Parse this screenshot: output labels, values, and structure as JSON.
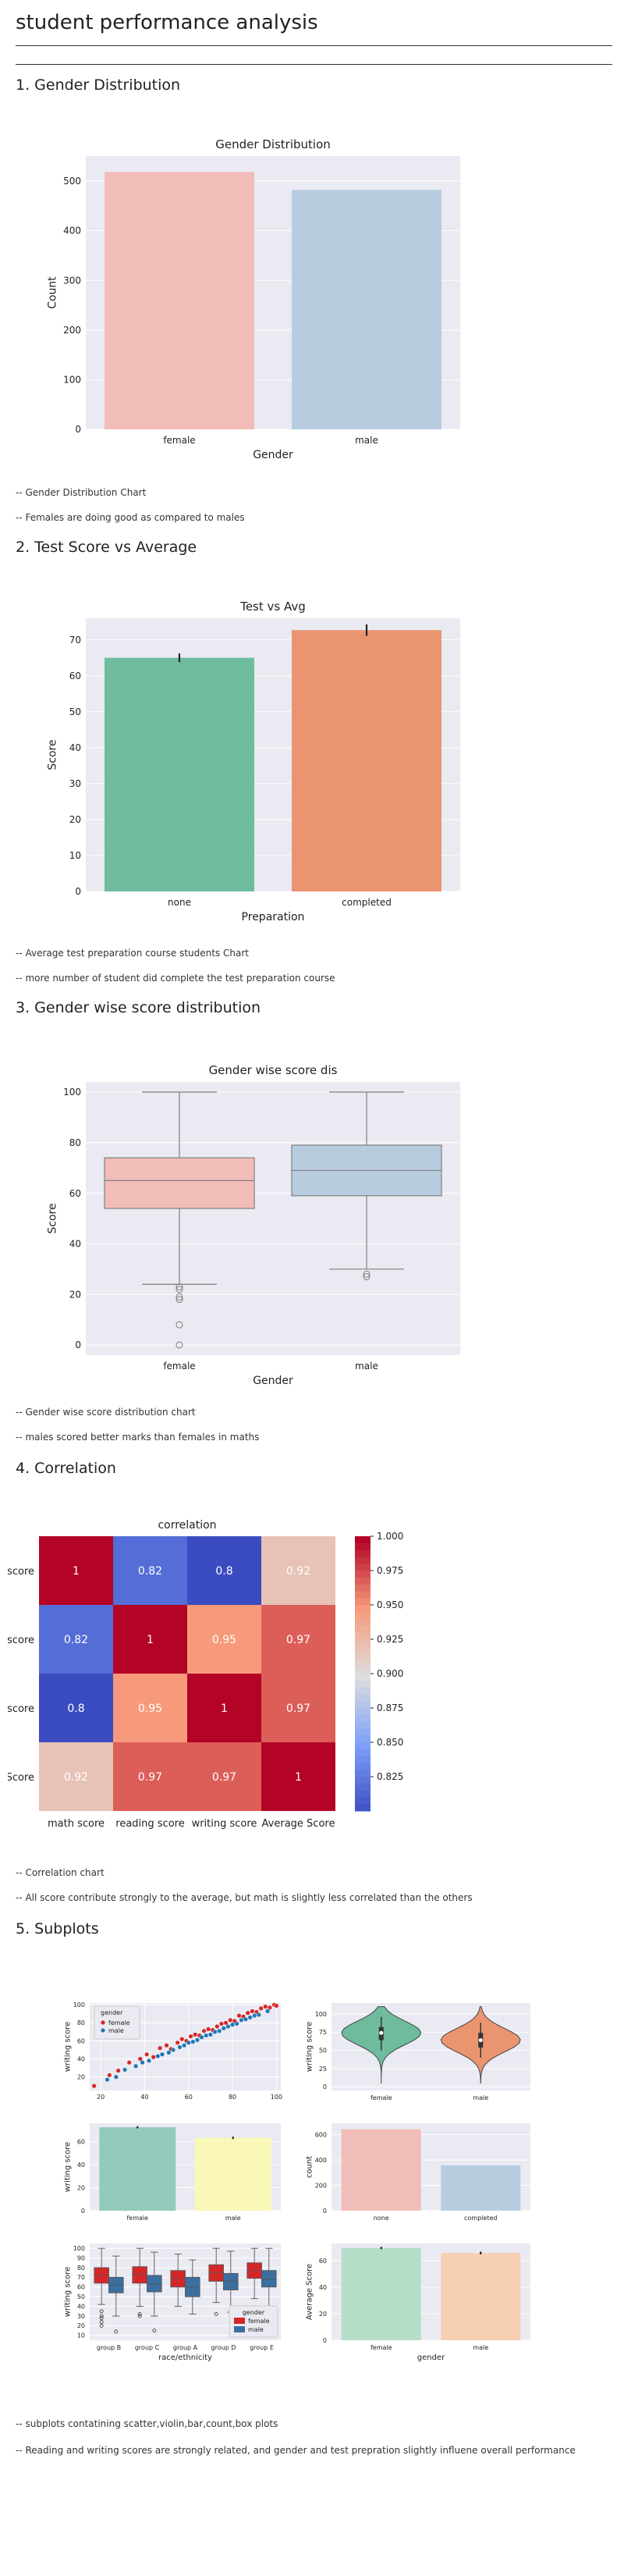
{
  "page": {
    "title": "student performance analysis",
    "sections": [
      {
        "heading": "1. Gender Distribution",
        "notes": [
          "-- Gender Distribution Chart",
          "-- Females are doing good as compared to males"
        ]
      },
      {
        "heading": "2. Test Score vs Average",
        "notes": [
          "-- Average test preparation course students Chart",
          "-- more number of student did complete the test preparation course"
        ]
      },
      {
        "heading": "3. Gender wise score distribution",
        "notes": [
          "-- Gender wise score distribution chart",
          "-- males scored better marks than females in maths"
        ]
      },
      {
        "heading": "4. Correlation",
        "notes": [
          "-- Correlation chart",
          "-- All score contribute strongly to the average, but math is slightly less correlated than the others"
        ]
      },
      {
        "heading": "5. Subplots",
        "notes": [
          "-- subplots contatining scatter,violin,bar,count,box plots",
          "-- Reading and writing scores are strongly related, and gender and test prepration slightly influene overall performance"
        ]
      }
    ]
  },
  "chart_data": [
    {
      "type": "bar",
      "title": "Gender Distribution",
      "xlabel": "Gender",
      "ylabel": "Count",
      "categories": [
        "female",
        "male"
      ],
      "values": [
        518,
        482
      ],
      "ylim": [
        0,
        550
      ],
      "yticks": [
        0,
        100,
        200,
        300,
        400,
        500
      ],
      "colors": [
        "#f2bcb8",
        "#b8cce0"
      ],
      "grid": true
    },
    {
      "type": "bar",
      "title": "Test vs Avg",
      "xlabel": "Preparation",
      "ylabel": "Score",
      "categories": [
        "none",
        "completed"
      ],
      "values": [
        65.0,
        72.7
      ],
      "error": [
        1.2,
        1.6
      ],
      "ylim": [
        0,
        76
      ],
      "yticks": [
        0,
        10,
        20,
        30,
        40,
        50,
        60,
        70
      ],
      "colors": [
        "#6fbb9e",
        "#ea9470"
      ],
      "grid": true
    },
    {
      "type": "box",
      "title": "Gender wise score dis",
      "xlabel": "Gender",
      "ylabel": "Score",
      "categories": [
        "female",
        "male"
      ],
      "boxes": [
        {
          "whislo": 24,
          "q1": 54,
          "med": 65,
          "q3": 74,
          "whishi": 100,
          "fliers": [
            23,
            22,
            19,
            18,
            8,
            0
          ]
        },
        {
          "whislo": 30,
          "q1": 59,
          "med": 69,
          "q3": 79,
          "whishi": 100,
          "fliers": [
            28,
            27
          ]
        }
      ],
      "ylim": [
        -4,
        104
      ],
      "yticks": [
        0,
        20,
        40,
        60,
        80,
        100
      ],
      "colors": [
        "#f2bcb8",
        "#b8cce0"
      ],
      "grid": true
    },
    {
      "type": "heatmap",
      "title": "correlation",
      "row_labels": [
        "math score",
        "reading score",
        "writing score",
        "Average Score"
      ],
      "col_labels": [
        "math score",
        "reading score",
        "writing score",
        "Average Score"
      ],
      "visible_row_labels": [
        "nath score",
        "iding score",
        "iting score",
        "age Score"
      ],
      "values": [
        [
          1,
          0.82,
          0.8,
          0.92
        ],
        [
          0.82,
          1,
          0.95,
          0.97
        ],
        [
          0.8,
          0.95,
          1,
          0.97
        ],
        [
          0.92,
          0.97,
          0.97,
          1
        ]
      ],
      "colormap": "coolwarm",
      "colorbar_ticks": [
        0.825,
        0.85,
        0.875,
        0.9,
        0.925,
        0.95,
        0.975,
        1.0
      ],
      "colorbar_labels": [
        "0.825",
        "0.850",
        "0.875",
        "0.900",
        "0.925",
        "0.950",
        "0.975",
        "1.000"
      ],
      "range": [
        0.8,
        1.0
      ]
    },
    {
      "type": "scatter",
      "xlabel": "",
      "ylabel": "writing score",
      "xlim": [
        15,
        102
      ],
      "ylim": [
        5,
        102
      ],
      "xticks": [
        20,
        40,
        60,
        80,
        100
      ],
      "yticks": [
        20,
        40,
        60,
        80,
        100
      ],
      "legend": {
        "title": "gender",
        "placement": "upper-left"
      },
      "series": [
        {
          "name": "female",
          "color": "#d62728",
          "points": [
            [
              17,
              10
            ],
            [
              24,
              22
            ],
            [
              28,
              27
            ],
            [
              33,
              36
            ],
            [
              38,
              40
            ],
            [
              41,
              45
            ],
            [
              44,
              42
            ],
            [
              47,
              52
            ],
            [
              50,
              55
            ],
            [
              52,
              51
            ],
            [
              55,
              58
            ],
            [
              57,
              62
            ],
            [
              59,
              60
            ],
            [
              61,
              65
            ],
            [
              63,
              67
            ],
            [
              65,
              66
            ],
            [
              67,
              71
            ],
            [
              69,
              73
            ],
            [
              71,
              72
            ],
            [
              73,
              76
            ],
            [
              75,
              79
            ],
            [
              77,
              80
            ],
            [
              79,
              83
            ],
            [
              81,
              82
            ],
            [
              83,
              88
            ],
            [
              85,
              87
            ],
            [
              87,
              91
            ],
            [
              89,
              93
            ],
            [
              91,
              92
            ],
            [
              93,
              96
            ],
            [
              95,
              98
            ],
            [
              97,
              97
            ],
            [
              99,
              100
            ],
            [
              100,
              99
            ]
          ]
        },
        {
          "name": "male",
          "color": "#1f77b4",
          "points": [
            [
              23,
              17
            ],
            [
              27,
              20
            ],
            [
              31,
              28
            ],
            [
              36,
              32
            ],
            [
              39,
              36
            ],
            [
              42,
              38
            ],
            [
              46,
              43
            ],
            [
              48,
              45
            ],
            [
              51,
              47
            ],
            [
              53,
              50
            ],
            [
              56,
              53
            ],
            [
              58,
              55
            ],
            [
              60,
              58
            ],
            [
              62,
              59
            ],
            [
              64,
              61
            ],
            [
              66,
              64
            ],
            [
              68,
              66
            ],
            [
              70,
              67
            ],
            [
              72,
              70
            ],
            [
              74,
              71
            ],
            [
              76,
              74
            ],
            [
              78,
              76
            ],
            [
              80,
              78
            ],
            [
              82,
              79
            ],
            [
              84,
              83
            ],
            [
              86,
              84
            ],
            [
              88,
              86
            ],
            [
              90,
              88
            ],
            [
              92,
              89
            ],
            [
              96,
              93
            ]
          ]
        }
      ]
    },
    {
      "type": "violin",
      "xlabel": "",
      "ylabel": "writing score",
      "categories": [
        "female",
        "male"
      ],
      "ylim": [
        -5,
        115
      ],
      "yticks": [
        0,
        25,
        50,
        75,
        100
      ],
      "colors": [
        "#6fbb9e",
        "#ea9470"
      ],
      "medians": [
        74,
        64
      ],
      "q1": [
        64,
        54
      ],
      "q3": [
        82,
        74
      ]
    },
    {
      "type": "bar",
      "xlabel": "",
      "ylabel": "writing score",
      "categories": [
        "female",
        "male"
      ],
      "values": [
        72.5,
        63.3
      ],
      "error": [
        0.9,
        1.0
      ],
      "ylim": [
        0,
        76
      ],
      "yticks": [
        0,
        20,
        40,
        60
      ],
      "colors": [
        "#92cbbd",
        "#f9f8b8"
      ]
    },
    {
      "type": "bar",
      "subtype": "count",
      "xlabel": "",
      "ylabel": "count",
      "categories": [
        "none",
        "completed"
      ],
      "values": [
        642,
        358
      ],
      "ylim": [
        0,
        690
      ],
      "yticks": [
        0,
        200,
        400,
        600
      ],
      "colors": [
        "#f2bcb8",
        "#b8cce0"
      ]
    },
    {
      "type": "box",
      "xlabel": "race/ethnicity",
      "ylabel": "writing score",
      "categories": [
        "group B",
        "group C",
        "group A",
        "group D",
        "group E"
      ],
      "legend": {
        "title": "gender",
        "placement": "lower-right"
      },
      "ylim": [
        5,
        105
      ],
      "yticks": [
        10,
        20,
        30,
        40,
        50,
        60,
        70,
        80,
        90,
        100
      ],
      "series": [
        {
          "name": "female",
          "color": "#d62728",
          "boxes": [
            {
              "whislo": 42,
              "q1": 64,
              "med": 72,
              "q3": 80,
              "whishi": 100,
              "fliers": [
                35,
                30,
                28,
                24,
                20
              ]
            },
            {
              "whislo": 40,
              "q1": 64,
              "med": 73,
              "q3": 81,
              "whishi": 100,
              "fliers": [
                32,
                30
              ]
            },
            {
              "whislo": 40,
              "q1": 60,
              "med": 69,
              "q3": 77,
              "whishi": 94,
              "fliers": []
            },
            {
              "whislo": 44,
              "q1": 66,
              "med": 75,
              "q3": 83,
              "whishi": 100,
              "fliers": [
                32
              ]
            },
            {
              "whislo": 48,
              "q1": 69,
              "med": 77,
              "q3": 85,
              "whishi": 100,
              "fliers": []
            }
          ]
        },
        {
          "name": "male",
          "color": "#3b6fa0",
          "boxes": [
            {
              "whislo": 30,
              "q1": 54,
              "med": 62,
              "q3": 70,
              "whishi": 92,
              "fliers": [
                14
              ]
            },
            {
              "whislo": 30,
              "q1": 55,
              "med": 63,
              "q3": 72,
              "whishi": 96,
              "fliers": [
                15
              ]
            },
            {
              "whislo": 32,
              "q1": 50,
              "med": 60,
              "q3": 70,
              "whishi": 88,
              "fliers": []
            },
            {
              "whislo": 34,
              "q1": 57,
              "med": 66,
              "q3": 74,
              "whishi": 97,
              "fliers": [
                30
              ]
            },
            {
              "whislo": 38,
              "q1": 60,
              "med": 68,
              "q3": 77,
              "whishi": 100,
              "fliers": []
            }
          ]
        }
      ]
    },
    {
      "type": "bar",
      "xlabel": "gender",
      "ylabel": "Average Score",
      "categories": [
        "female",
        "male"
      ],
      "values": [
        69.6,
        65.8
      ],
      "error": [
        0.9,
        1.0
      ],
      "ylim": [
        0,
        73
      ],
      "yticks": [
        0,
        20,
        40,
        60
      ],
      "colors": [
        "#b5dec9",
        "#f7d0b3"
      ]
    }
  ]
}
